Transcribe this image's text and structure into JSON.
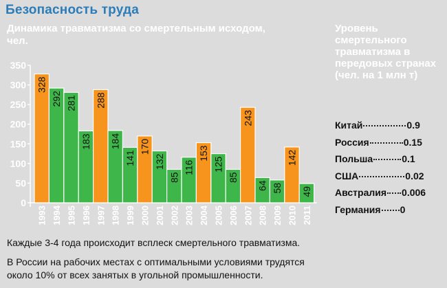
{
  "header": {
    "title": "Безопасность труда"
  },
  "chart_data": {
    "type": "bar",
    "title": "Динамика травматизма со смертельным исходом, чел.",
    "xlabel": "",
    "ylabel": "",
    "ylim": [
      0,
      350
    ],
    "yticks": [
      0,
      50,
      100,
      150,
      200,
      250,
      300,
      350
    ],
    "categories": [
      "1993",
      "1994",
      "1995",
      "1996",
      "1997",
      "1998",
      "1999",
      "2000",
      "2001",
      "2002",
      "2003",
      "2004",
      "2005",
      "2006",
      "2007",
      "2008",
      "2009",
      "2010",
      "2011"
    ],
    "values": [
      328,
      292,
      281,
      183,
      288,
      184,
      141,
      170,
      132,
      85,
      116,
      153,
      125,
      85,
      243,
      64,
      58,
      142,
      49
    ],
    "highlighted_years": [
      "1993",
      "1997",
      "2000",
      "2004",
      "2007",
      "2010"
    ],
    "colors": {
      "normal": "#3fb64a",
      "highlight": "#f7941d",
      "stroke": "#ffffff"
    },
    "grid": false
  },
  "sidebar": {
    "title": "Уровень смертельного травматизма в передовых странах (чел. на 1 млн т)",
    "rates": [
      {
        "country": "Китай",
        "value": "0.9"
      },
      {
        "country": "Россия",
        "value": "0.15"
      },
      {
        "country": "Польша",
        "value": "0.1"
      },
      {
        "country": "США",
        "value": "0.02"
      },
      {
        "country": "Австралия",
        "value": "0.006"
      },
      {
        "country": "Германия",
        "value": "0"
      }
    ]
  },
  "notes": {
    "line1": "Каждые 3-4 года происходит всплеск смертельного травматизма.",
    "line2": "В России на рабочих местах с оптимальными условиями трудятся около 10% от всех занятых в угольной промышленности."
  }
}
